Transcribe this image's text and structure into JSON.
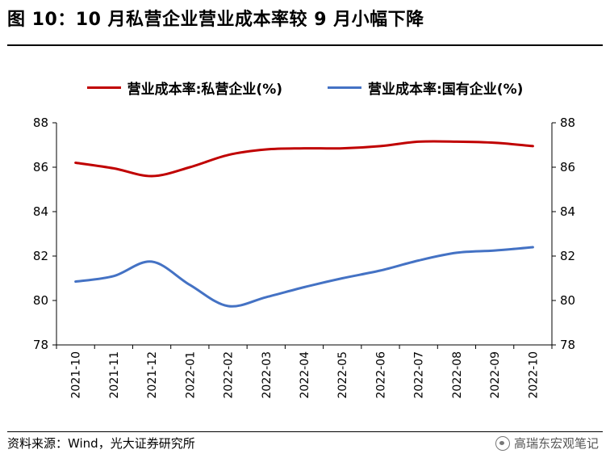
{
  "header": {
    "title": "图 10：10 月私营企业营业成本率较 9 月小幅下降"
  },
  "footer": {
    "source": "资料来源：Wind，光大证券研究所",
    "watermark": "高瑞东宏观笔记",
    "watermark_icon": "wechat-icon"
  },
  "chart_data": {
    "type": "line",
    "categories": [
      "2021-10",
      "2021-11",
      "2021-12",
      "2022-01",
      "2022-02",
      "2022-03",
      "2022-04",
      "2022-05",
      "2022-06",
      "2022-07",
      "2022-08",
      "2022-09",
      "2022-10"
    ],
    "series": [
      {
        "name": "营业成本率:私营企业(%)",
        "color": "#C00000",
        "axis": "left",
        "values": [
          86.2,
          85.95,
          85.6,
          86.0,
          86.55,
          86.8,
          86.85,
          86.85,
          86.95,
          87.15,
          87.15,
          87.1,
          86.95
        ]
      },
      {
        "name": "营业成本率:国有企业(%)",
        "color": "#4472C4",
        "axis": "right",
        "values": [
          80.85,
          81.1,
          81.75,
          80.7,
          79.75,
          80.15,
          80.6,
          81.0,
          81.35,
          81.8,
          82.15,
          82.25,
          82.4
        ]
      }
    ],
    "ylim_left": [
      78,
      88
    ],
    "ylim_right": [
      78,
      88
    ],
    "yticks_left": [
      "78",
      "80",
      "82",
      "84",
      "86",
      "88"
    ],
    "yticks_right": [
      "78",
      "80",
      "82",
      "84",
      "86",
      "88"
    ],
    "legend_position": "top",
    "grid": false
  }
}
